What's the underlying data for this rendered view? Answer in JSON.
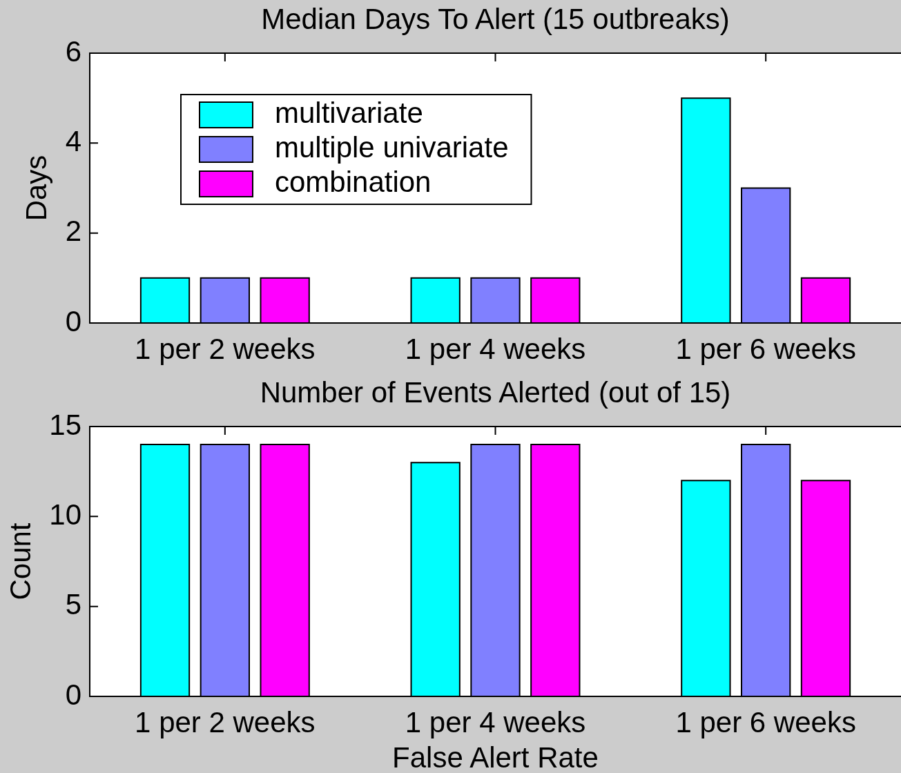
{
  "chart_data": [
    {
      "type": "bar",
      "title": "Median Days To Alert (15 outbreaks)",
      "ylabel": "Days",
      "categories": [
        "1 per 2 weeks",
        "1 per 4 weeks",
        "1 per 6 weeks"
      ],
      "series": [
        {
          "name": "multivariate",
          "color": "#00ffff",
          "values": [
            1,
            1,
            5
          ]
        },
        {
          "name": "multiple univariate",
          "color": "#8080ff",
          "values": [
            1,
            1,
            3
          ]
        },
        {
          "name": "combination",
          "color": "#ff00ff",
          "values": [
            1,
            1,
            1
          ]
        }
      ],
      "ylim": [
        0,
        6
      ],
      "yticks": [
        0,
        2,
        4,
        6
      ],
      "legend": "top left"
    },
    {
      "type": "bar",
      "title": "Number of Events Alerted (out of 15)",
      "xlabel": "False Alert Rate",
      "ylabel": "Count",
      "categories": [
        "1 per 2 weeks",
        "1 per 4 weeks",
        "1 per 6 weeks"
      ],
      "series": [
        {
          "color": "#00ffff",
          "values": [
            14,
            13,
            12
          ]
        },
        {
          "color": "#8080ff",
          "values": [
            14,
            14,
            14
          ]
        },
        {
          "color": "#ff00ff",
          "values": [
            14,
            14,
            12
          ]
        }
      ],
      "ylim": [
        0,
        15
      ],
      "yticks": [
        0,
        5,
        10,
        15
      ]
    }
  ]
}
